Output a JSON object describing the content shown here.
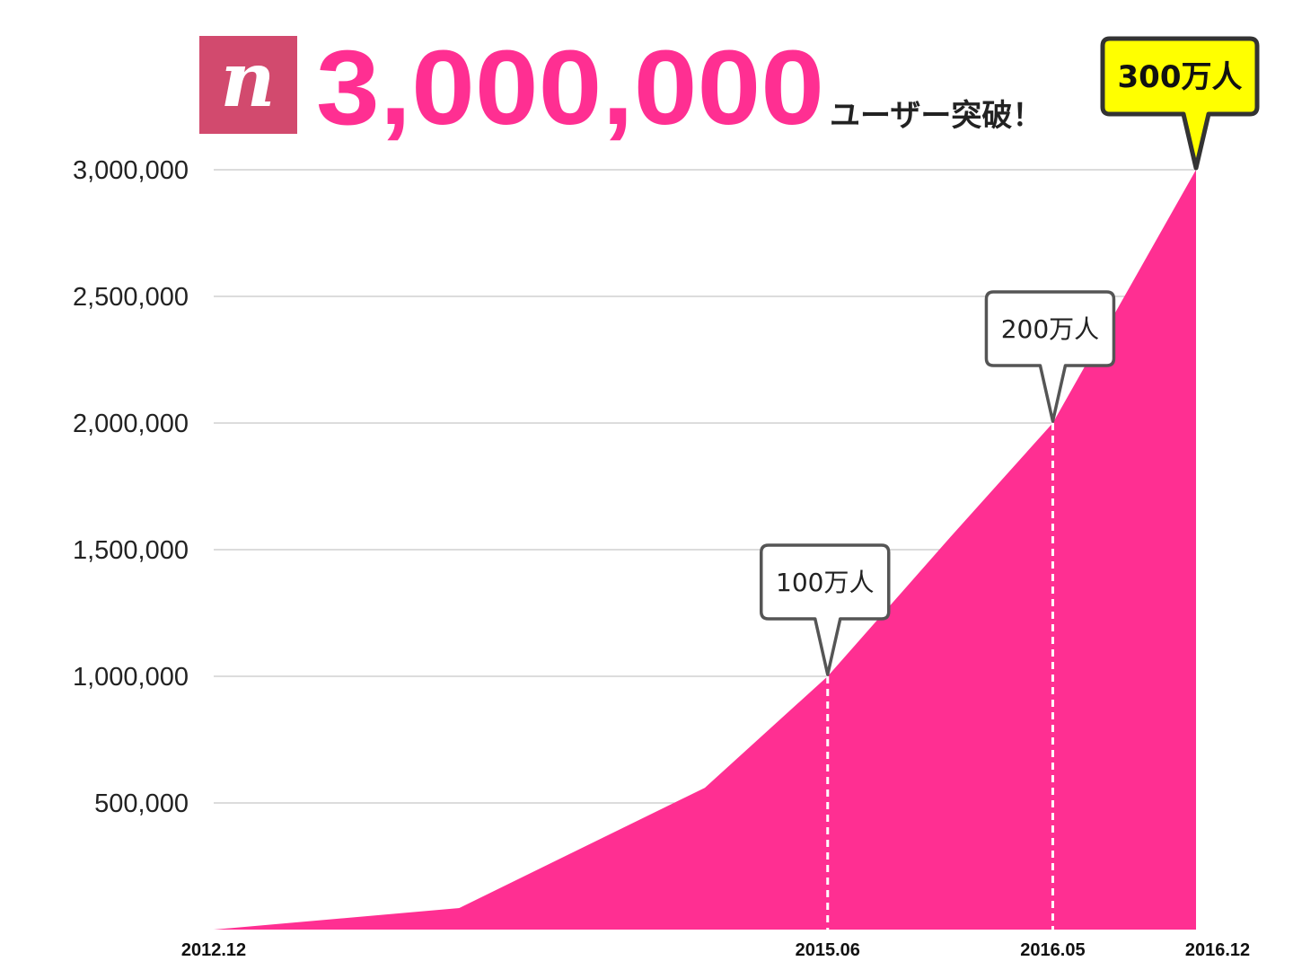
{
  "header": {
    "logo_letter": "n",
    "headline_number": "3,000,000",
    "headline_suffix": "ユーザー突破！"
  },
  "colors": {
    "accent": "#ff2f92",
    "logo_bg": "#d24a6e",
    "grid": "#c8c8c8",
    "callout_highlight": "#ffff00"
  },
  "chart_data": {
    "type": "area",
    "title": "3,000,000ユーザー突破！",
    "xlabel": "",
    "ylabel": "",
    "ylim": [
      0,
      3000000
    ],
    "grid": true,
    "y_ticks": [
      {
        "value": 500000,
        "label": "500,000"
      },
      {
        "value": 1000000,
        "label": "1,000,000"
      },
      {
        "value": 1500000,
        "label": "1,500,000"
      },
      {
        "value": 2000000,
        "label": "2,000,000"
      },
      {
        "value": 2500000,
        "label": "2,500,000"
      },
      {
        "value": 3000000,
        "label": "3,000,000"
      }
    ],
    "x_tick_labels": [
      "2012.12",
      "2015.06",
      "2016.05",
      "2016.12"
    ],
    "x": [
      "2012.12",
      "2013.12",
      "2014.12",
      "2015.06",
      "2015.12",
      "2016.05",
      "2016.12"
    ],
    "values": [
      0,
      85000,
      560000,
      1000000,
      1550000,
      2000000,
      3000000
    ],
    "annotations": [
      {
        "x": "2015.06",
        "value": 1000000,
        "label": "100万人",
        "highlight": false
      },
      {
        "x": "2016.05",
        "value": 2000000,
        "label": "200万人",
        "highlight": false
      },
      {
        "x": "2016.12",
        "value": 3000000,
        "label": "300万人",
        "highlight": true
      }
    ]
  }
}
